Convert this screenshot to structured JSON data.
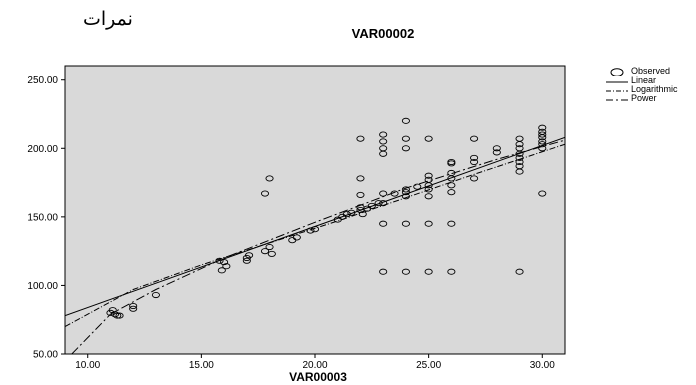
{
  "chart_data": {
    "type": "scatter",
    "chart_label": "نمرات",
    "title": "VAR00002",
    "xlabel": "VAR00003",
    "ylabel": "",
    "xlim": [
      9,
      31
    ],
    "ylim": [
      50,
      260
    ],
    "xticks": [
      "10.00",
      "15.00",
      "20.00",
      "25.00",
      "30.00"
    ],
    "yticks": [
      "50.00",
      "100.00",
      "150.00",
      "200.00",
      "250.00"
    ],
    "xtick_values": [
      10,
      15,
      20,
      25,
      30
    ],
    "ytick_values": [
      50,
      100,
      150,
      200,
      250
    ],
    "grid": false,
    "background": "#d9d9d9",
    "legend_position": "right",
    "legend": [
      "Observed",
      "Linear",
      "Logarithmic",
      "Power"
    ],
    "observed": [
      [
        11,
        80
      ],
      [
        11.1,
        82
      ],
      [
        11.2,
        79
      ],
      [
        11.3,
        78
      ],
      [
        11.4,
        78
      ],
      [
        12,
        83
      ],
      [
        12,
        85
      ],
      [
        13,
        93
      ],
      [
        15.8,
        118
      ],
      [
        15.9,
        111
      ],
      [
        16,
        117
      ],
      [
        16.1,
        114
      ],
      [
        17,
        118
      ],
      [
        17,
        120
      ],
      [
        17.1,
        122
      ],
      [
        17.8,
        125
      ],
      [
        17.8,
        167
      ],
      [
        18,
        178
      ],
      [
        18,
        128
      ],
      [
        18.1,
        123
      ],
      [
        19,
        133
      ],
      [
        19.2,
        135
      ],
      [
        19.8,
        140
      ],
      [
        20,
        141
      ],
      [
        21,
        148
      ],
      [
        21.2,
        150
      ],
      [
        21.4,
        152
      ],
      [
        21.6,
        153
      ],
      [
        22,
        155
      ],
      [
        22,
        157
      ],
      [
        22,
        166
      ],
      [
        22,
        178
      ],
      [
        22,
        207
      ],
      [
        22.1,
        152
      ],
      [
        22.3,
        156
      ],
      [
        22.5,
        158
      ],
      [
        22.8,
        160
      ],
      [
        23,
        110
      ],
      [
        23,
        145
      ],
      [
        23,
        160
      ],
      [
        23,
        167
      ],
      [
        23,
        196
      ],
      [
        23,
        200
      ],
      [
        23,
        205
      ],
      [
        23,
        210
      ],
      [
        23.5,
        167
      ],
      [
        24,
        110
      ],
      [
        24,
        145
      ],
      [
        24,
        165
      ],
      [
        24,
        168
      ],
      [
        24,
        170
      ],
      [
        24,
        200
      ],
      [
        24,
        207
      ],
      [
        24,
        220
      ],
      [
        24.5,
        172
      ],
      [
        25,
        110
      ],
      [
        25,
        145
      ],
      [
        25,
        165
      ],
      [
        25,
        170
      ],
      [
        25,
        173
      ],
      [
        25,
        177
      ],
      [
        25,
        180
      ],
      [
        25,
        207
      ],
      [
        26,
        110
      ],
      [
        26,
        145
      ],
      [
        26,
        168
      ],
      [
        26,
        173
      ],
      [
        26,
        178
      ],
      [
        26,
        182
      ],
      [
        26,
        189
      ],
      [
        26,
        190
      ],
      [
        27,
        178
      ],
      [
        27,
        190
      ],
      [
        27,
        193
      ],
      [
        27,
        207
      ],
      [
        28,
        197
      ],
      [
        28,
        200
      ],
      [
        29,
        110
      ],
      [
        29,
        183
      ],
      [
        29,
        187
      ],
      [
        29,
        190
      ],
      [
        29,
        193
      ],
      [
        29,
        196
      ],
      [
        29,
        200
      ],
      [
        29,
        203
      ],
      [
        29,
        207
      ],
      [
        30,
        167
      ],
      [
        30,
        200
      ],
      [
        30,
        203
      ],
      [
        30,
        205
      ],
      [
        30,
        208
      ],
      [
        30,
        210
      ],
      [
        30,
        212
      ],
      [
        30,
        215
      ]
    ],
    "fits": {
      "linear": [
        [
          9,
          78
        ],
        [
          31,
          208
        ]
      ],
      "logarithmic": [
        [
          9,
          70
        ],
        [
          12,
          97
        ],
        [
          15,
          115
        ],
        [
          18,
          131
        ],
        [
          21,
          147
        ],
        [
          24,
          164
        ],
        [
          27,
          181
        ],
        [
          31,
          203
        ]
      ],
      "power": [
        [
          9.3,
          50
        ],
        [
          11,
          79
        ],
        [
          13,
          97
        ],
        [
          16,
          120
        ],
        [
          20,
          146
        ],
        [
          24,
          171
        ],
        [
          28,
          192
        ],
        [
          31,
          206
        ]
      ]
    }
  }
}
